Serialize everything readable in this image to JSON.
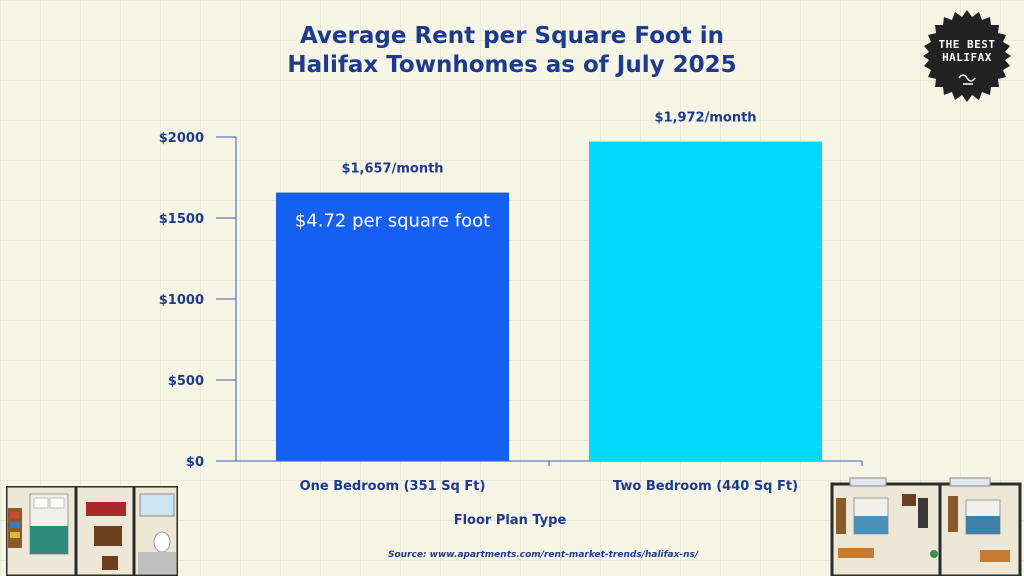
{
  "title_lines": [
    "Average Rent per Square Foot in",
    "Halifax Townhomes as of July 2025"
  ],
  "badge": {
    "line1": "THE BEST",
    "line2": "HALIFAX"
  },
  "source": "Source: www.apartments.com/rent-market-trends/halifax-ns/",
  "colors": {
    "title": "#1e3a8a",
    "bar1": "#1560f0",
    "bar2": "#00d9fc",
    "axis": "#3b5bb5",
    "background": "#f6f5e6"
  },
  "chart_data": {
    "type": "bar",
    "title": "Average Rent per Square Foot in Halifax Townhomes as of July 2025",
    "categories": [
      "One Bedroom (351 Sq Ft)",
      "Two Bedroom (440 Sq Ft)"
    ],
    "values": [
      1657,
      1972
    ],
    "value_labels": [
      "$1,657/month",
      "$1,972/month"
    ],
    "annotation": "$4.72 per square foot",
    "xlabel": "Floor Plan Type",
    "ylabel": "",
    "yticks": [
      0,
      500,
      1000,
      1500,
      2000
    ],
    "ytick_labels": [
      "$0",
      "$500",
      "$1000",
      "$1500",
      "$2000"
    ],
    "ylim": [
      0,
      2000
    ],
    "grid": false,
    "legend": false
  }
}
